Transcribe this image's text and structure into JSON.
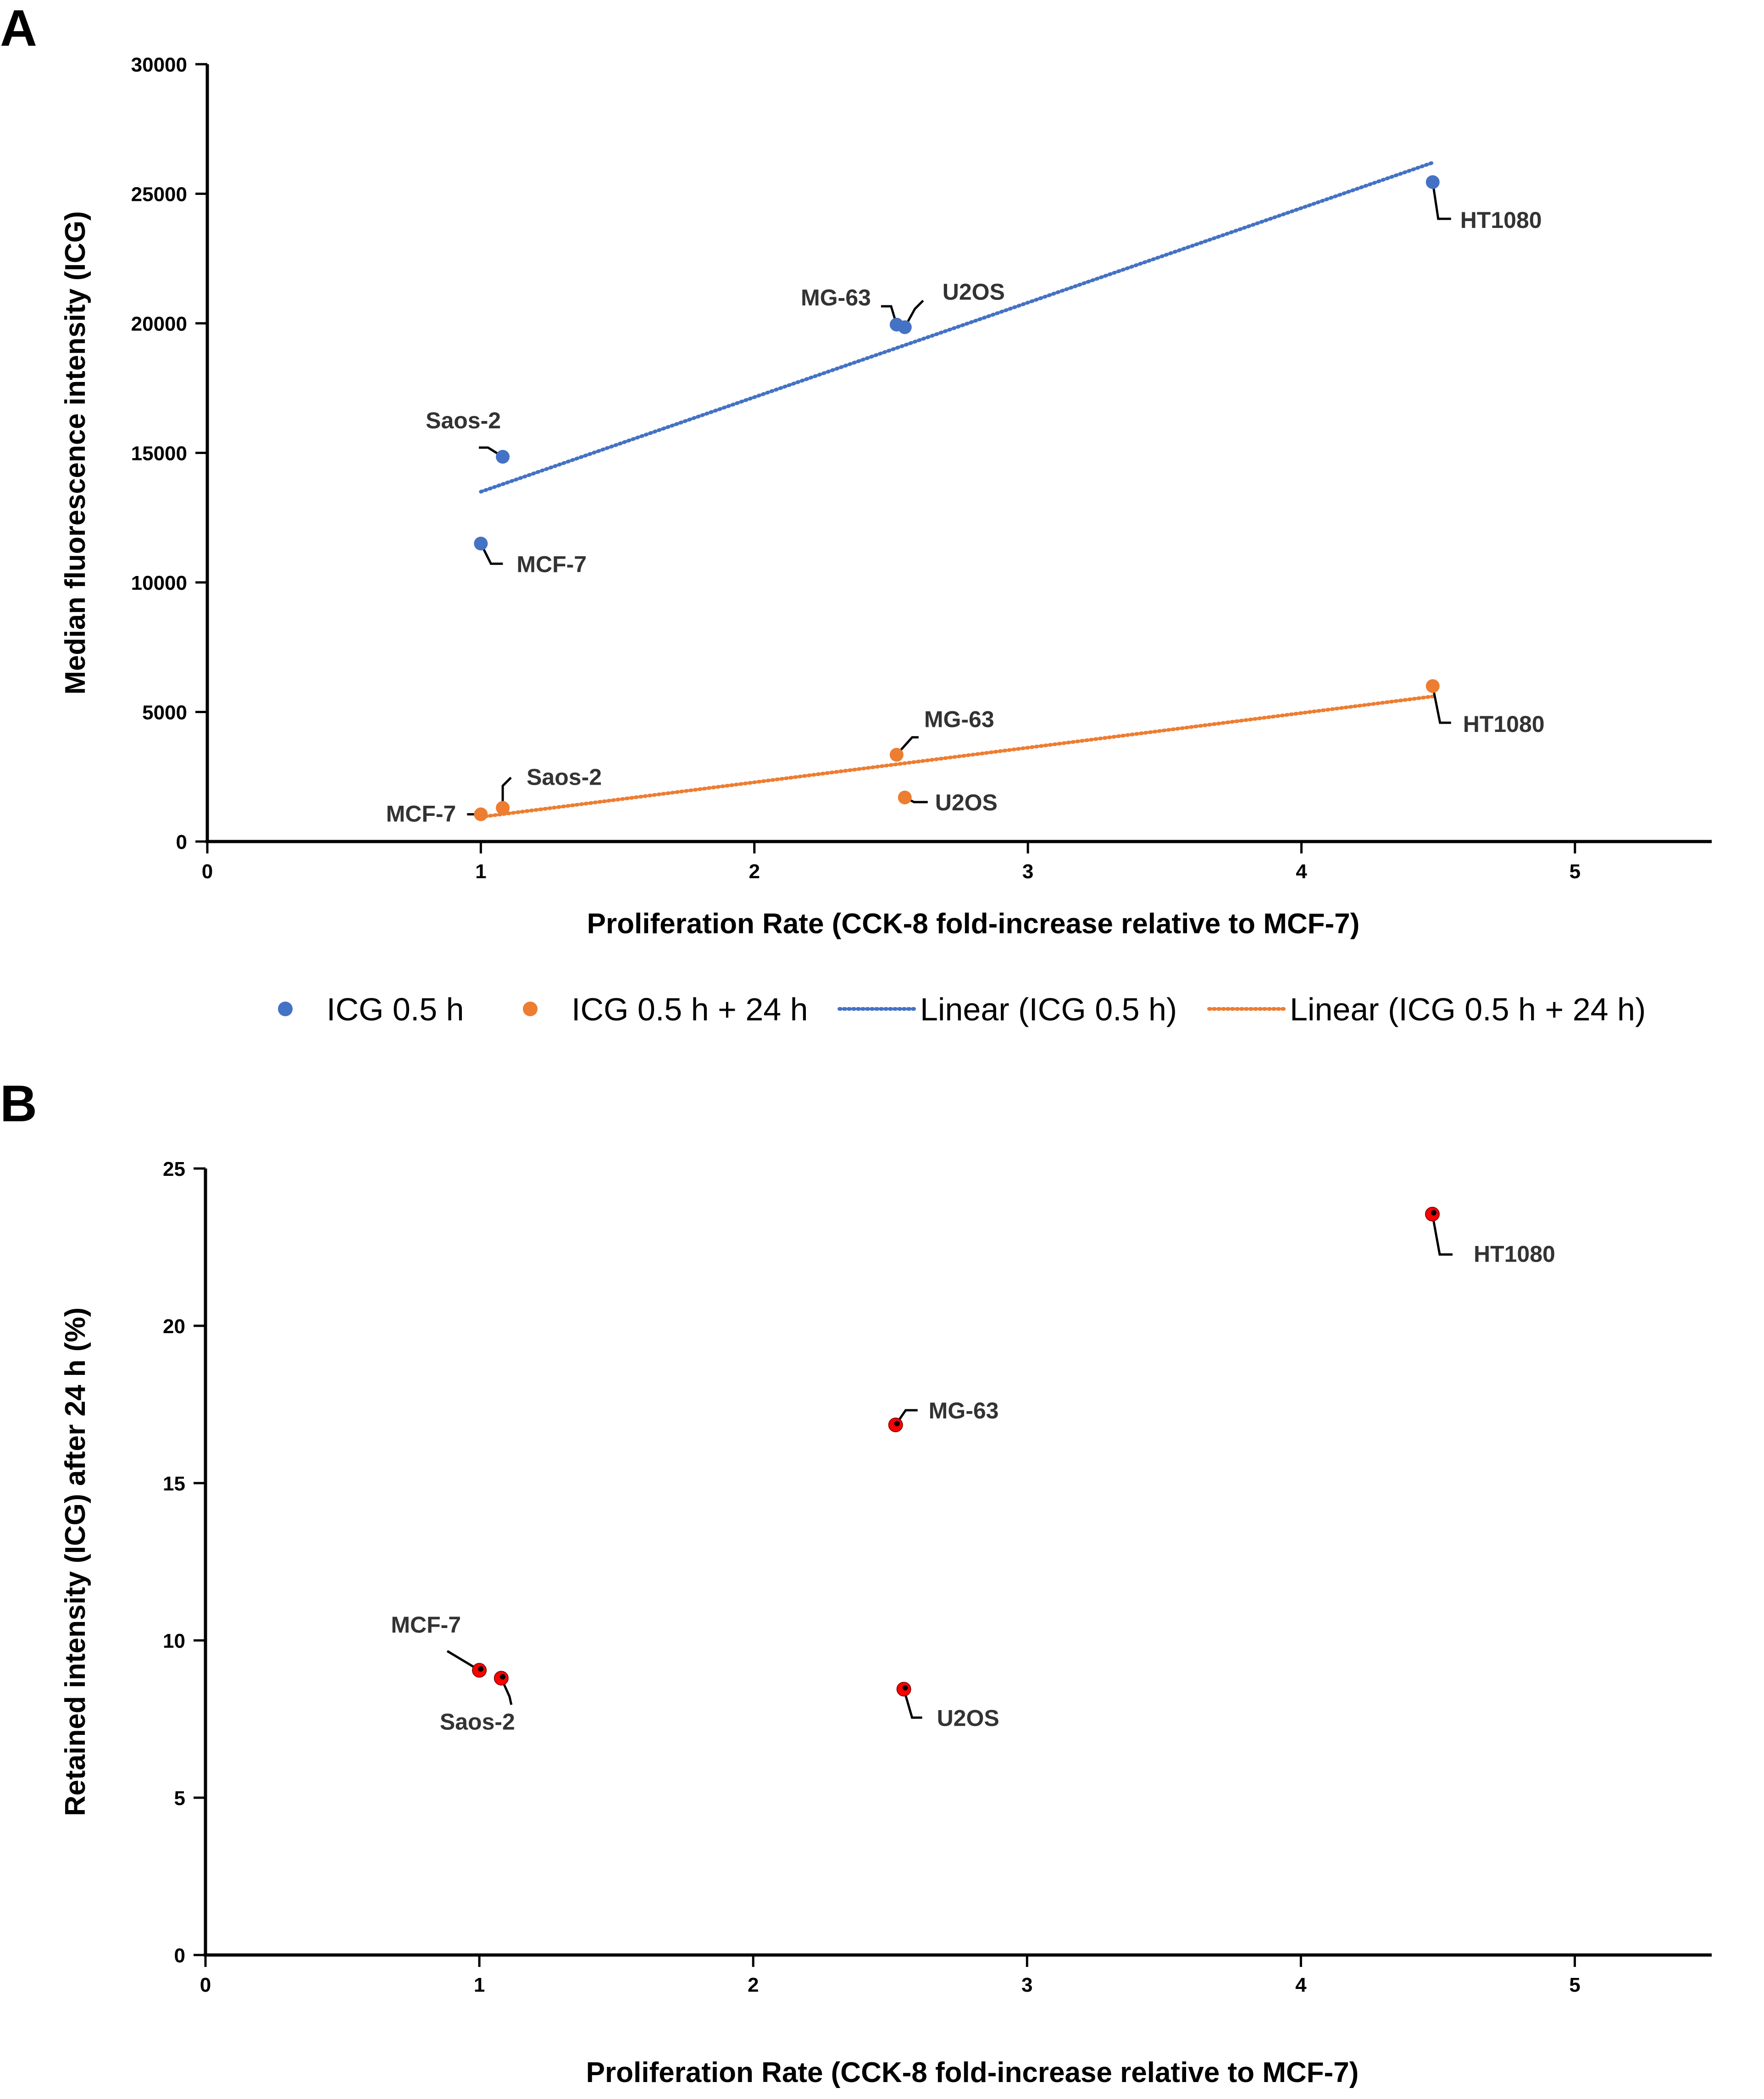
{
  "chart_data": [
    {
      "panel": "A",
      "type": "scatter",
      "title": "",
      "xlabel": "Proliferation Rate (CCK-8 fold-increase relative to MCF-7)",
      "ylabel": "Median fluorescence intensity (ICG)",
      "xlim": [
        0,
        5.5
      ],
      "ylim": [
        0,
        30000
      ],
      "xticks": [
        "0",
        "1",
        "2",
        "3",
        "4",
        "5"
      ],
      "yticks": [
        "0",
        "5000",
        "10000",
        "15000",
        "20000",
        "25000",
        "30000"
      ],
      "grid": false,
      "legend": "bottom",
      "series": [
        {
          "name": "ICG 0.5 h",
          "color": "#4472C4",
          "points": [
            {
              "label": "MCF-7",
              "x": 1.0,
              "y": 11500
            },
            {
              "label": "Saos-2",
              "x": 1.08,
              "y": 14850
            },
            {
              "label": "MG-63",
              "x": 2.52,
              "y": 19950
            },
            {
              "label": "U2OS",
              "x": 2.55,
              "y": 19850
            },
            {
              "label": "HT1080",
              "x": 4.48,
              "y": 25450
            }
          ],
          "trendline": {
            "name": "Linear (ICG 0.5 h)",
            "type": "linear",
            "x": [
              1.0,
              4.48
            ],
            "y": [
              13500,
              26200
            ]
          }
        },
        {
          "name": "ICG 0.5 h + 24 h",
          "color": "#ED7D31",
          "points": [
            {
              "label": "MCF-7",
              "x": 1.0,
              "y": 1050
            },
            {
              "label": "Saos-2",
              "x": 1.08,
              "y": 1300
            },
            {
              "label": "MG-63",
              "x": 2.52,
              "y": 3350
            },
            {
              "label": "U2OS",
              "x": 2.55,
              "y": 1700
            },
            {
              "label": "HT1080",
              "x": 4.48,
              "y": 6000
            }
          ],
          "trendline": {
            "name": "Linear (ICG 0.5 h + 24 h)",
            "type": "linear",
            "x": [
              1.0,
              4.48
            ],
            "y": [
              950,
              5600
            ]
          }
        }
      ]
    },
    {
      "panel": "B",
      "type": "scatter",
      "title": "",
      "xlabel": "Proliferation Rate (CCK-8 fold-increase relative to MCF-7)",
      "ylabel": "Retained intensity (ICG) after 24 h (%)",
      "xlim": [
        0,
        5.5
      ],
      "ylim": [
        0,
        25
      ],
      "xticks": [
        "0",
        "1",
        "2",
        "3",
        "4",
        "5"
      ],
      "yticks": [
        "0",
        "5",
        "10",
        "15",
        "20",
        "25"
      ],
      "grid": false,
      "legend": "none",
      "series": [
        {
          "name": "",
          "color": "#FF0000",
          "points": [
            {
              "label": "MCF-7",
              "x": 1.0,
              "y": 9.05
            },
            {
              "label": "Saos-2",
              "x": 1.08,
              "y": 8.8
            },
            {
              "label": "MG-63",
              "x": 2.52,
              "y": 16.85
            },
            {
              "label": "U2OS",
              "x": 2.55,
              "y": 8.45
            },
            {
              "label": "HT1080",
              "x": 4.48,
              "y": 23.55
            }
          ]
        }
      ]
    }
  ]
}
